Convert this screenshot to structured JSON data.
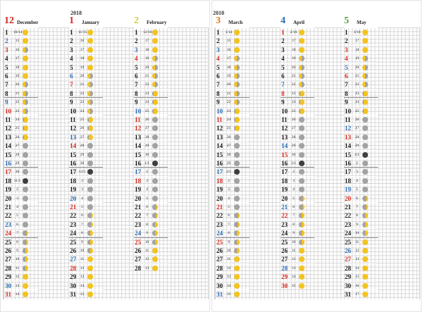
{
  "left_page": {
    "year": "2018",
    "months": [
      {
        "number": "12",
        "name": "December",
        "num_color": "#d6261c",
        "days": [
          {
            "d": "1",
            "l": "10/14",
            "m": "full"
          },
          {
            "d": "2",
            "l": "15",
            "m": "full",
            "c": "sat"
          },
          {
            "d": "3",
            "l": "16",
            "m": "wane",
            "c": "sun"
          },
          {
            "d": "4",
            "l": "17",
            "m": "full"
          },
          {
            "d": "5",
            "l": "18",
            "m": "full"
          },
          {
            "d": "6",
            "l": "19",
            "m": "full"
          },
          {
            "d": "7",
            "l": "20",
            "m": "wane"
          },
          {
            "d": "8",
            "l": "21",
            "m": "wane"
          },
          {
            "d": "9",
            "l": "22",
            "m": "wane",
            "c": "sat"
          },
          {
            "d": "10",
            "l": "23",
            "m": "wane",
            "c": "sun"
          },
          {
            "d": "11",
            "l": "24",
            "m": "gib"
          },
          {
            "d": "12",
            "l": "25",
            "m": "gib"
          },
          {
            "d": "13",
            "l": "26",
            "m": "gib"
          },
          {
            "d": "14",
            "l": "27",
            "m": "gray"
          },
          {
            "d": "15",
            "l": "28",
            "m": "gray"
          },
          {
            "d": "16",
            "l": "29",
            "m": "gray",
            "c": "sat"
          },
          {
            "d": "17",
            "l": "30",
            "m": "gray",
            "c": "sun"
          },
          {
            "d": "18",
            "l": "11/1",
            "m": "new"
          },
          {
            "d": "19",
            "l": "2",
            "m": "gray"
          },
          {
            "d": "20",
            "l": "3",
            "m": "gray"
          },
          {
            "d": "21",
            "l": "4",
            "m": "gray"
          },
          {
            "d": "22",
            "l": "5",
            "m": "gray"
          },
          {
            "d": "23",
            "l": "6",
            "m": "gray",
            "c": "sat"
          },
          {
            "d": "24",
            "l": "7",
            "m": "cresc",
            "c": "sun"
          },
          {
            "d": "25",
            "l": "8",
            "m": "cresc"
          },
          {
            "d": "26",
            "l": "9",
            "m": "wax"
          },
          {
            "d": "27",
            "l": "10",
            "m": "wax"
          },
          {
            "d": "28",
            "l": "11",
            "m": "wax"
          },
          {
            "d": "29",
            "l": "12",
            "m": "full"
          },
          {
            "d": "30",
            "l": "13",
            "m": "full",
            "c": "sat"
          },
          {
            "d": "31",
            "l": "14",
            "m": "full",
            "c": "sun"
          }
        ]
      },
      {
        "number": "1",
        "name": "January",
        "num_color": "#d6261c",
        "days": [
          {
            "d": "1",
            "l": "11/15",
            "m": "full"
          },
          {
            "d": "2",
            "l": "16",
            "m": "full"
          },
          {
            "d": "3",
            "l": "17",
            "m": "full"
          },
          {
            "d": "4",
            "l": "18",
            "m": "full"
          },
          {
            "d": "5",
            "l": "19",
            "m": "full"
          },
          {
            "d": "6",
            "l": "20",
            "m": "wane",
            "c": "sat"
          },
          {
            "d": "7",
            "l": "21",
            "m": "wane",
            "c": "sun"
          },
          {
            "d": "8",
            "l": "22",
            "m": "wane"
          },
          {
            "d": "9",
            "l": "23",
            "m": "wane"
          },
          {
            "d": "10",
            "l": "24",
            "m": "wane"
          },
          {
            "d": "11",
            "l": "25",
            "m": "gib"
          },
          {
            "d": "12",
            "l": "26",
            "m": "gib"
          },
          {
            "d": "13",
            "l": "27",
            "m": "gib",
            "c": "sat"
          },
          {
            "d": "14",
            "l": "28",
            "m": "gray",
            "c": "sun"
          },
          {
            "d": "15",
            "l": "29",
            "m": "gray"
          },
          {
            "d": "16",
            "l": "30",
            "m": "gray"
          },
          {
            "d": "17",
            "l": "12/1",
            "m": "new"
          },
          {
            "d": "18",
            "l": "2",
            "m": "gray"
          },
          {
            "d": "19",
            "l": "3",
            "m": "gray"
          },
          {
            "d": "20",
            "l": "4",
            "m": "gray",
            "c": "sat"
          },
          {
            "d": "21",
            "l": "5",
            "m": "gray",
            "c": "sun"
          },
          {
            "d": "22",
            "l": "6",
            "m": "cresc"
          },
          {
            "d": "23",
            "l": "7",
            "m": "cresc"
          },
          {
            "d": "24",
            "l": "8",
            "m": "wax"
          },
          {
            "d": "25",
            "l": "9",
            "m": "wax"
          },
          {
            "d": "26",
            "l": "10",
            "m": "wax"
          },
          {
            "d": "27",
            "l": "11",
            "m": "full",
            "c": "sat"
          },
          {
            "d": "28",
            "l": "12",
            "m": "full",
            "c": "sun"
          },
          {
            "d": "29",
            "l": "13",
            "m": "full"
          },
          {
            "d": "30",
            "l": "14",
            "m": "full"
          },
          {
            "d": "31",
            "l": "15",
            "m": "full"
          }
        ]
      },
      {
        "number": "2",
        "name": "February",
        "num_color": "#c9d43c",
        "days": [
          {
            "d": "1",
            "l": "12/16",
            "m": "full"
          },
          {
            "d": "2",
            "l": "17",
            "m": "full"
          },
          {
            "d": "3",
            "l": "18",
            "m": "full",
            "c": "sat"
          },
          {
            "d": "4",
            "l": "19",
            "m": "wane",
            "c": "sun"
          },
          {
            "d": "5",
            "l": "20",
            "m": "wane"
          },
          {
            "d": "6",
            "l": "21",
            "m": "wane"
          },
          {
            "d": "7",
            "l": "22",
            "m": "wane"
          },
          {
            "d": "8",
            "l": "23",
            "m": "gib"
          },
          {
            "d": "9",
            "l": "24",
            "m": "gib"
          },
          {
            "d": "10",
            "l": "25",
            "m": "gib",
            "c": "sat"
          },
          {
            "d": "11",
            "l": "26",
            "m": "gray",
            "c": "sun"
          },
          {
            "d": "12",
            "l": "27",
            "m": "gray",
            "c": "sun"
          },
          {
            "d": "13",
            "l": "28",
            "m": "gray"
          },
          {
            "d": "14",
            "l": "29",
            "m": "gray"
          },
          {
            "d": "15",
            "l": "30",
            "m": "gray"
          },
          {
            "d": "16",
            "l": "1/1",
            "m": "new"
          },
          {
            "d": "17",
            "l": "2",
            "m": "gray",
            "c": "sat"
          },
          {
            "d": "18",
            "l": "3",
            "m": "gray",
            "c": "sun"
          },
          {
            "d": "19",
            "l": "4",
            "m": "gray"
          },
          {
            "d": "20",
            "l": "5",
            "m": "gray"
          },
          {
            "d": "21",
            "l": "6",
            "m": "cresc"
          },
          {
            "d": "22",
            "l": "7",
            "m": "cresc"
          },
          {
            "d": "23",
            "l": "8",
            "m": "wax"
          },
          {
            "d": "24",
            "l": "9",
            "m": "wax",
            "c": "sat"
          },
          {
            "d": "25",
            "l": "10",
            "m": "wax",
            "c": "sun"
          },
          {
            "d": "26",
            "l": "11",
            "m": "full"
          },
          {
            "d": "27",
            "l": "12",
            "m": "full"
          },
          {
            "d": "28",
            "l": "13",
            "m": "full"
          }
        ]
      }
    ]
  },
  "right_page": {
    "year": "2018",
    "months": [
      {
        "number": "3",
        "name": "March",
        "num_color": "#e87a1e",
        "days": [
          {
            "d": "1",
            "l": "1/14",
            "m": "full"
          },
          {
            "d": "2",
            "l": "15",
            "m": "full"
          },
          {
            "d": "3",
            "l": "16",
            "m": "full",
            "c": "sat"
          },
          {
            "d": "4",
            "l": "17",
            "m": "wane",
            "c": "sun"
          },
          {
            "d": "5",
            "l": "18",
            "m": "wane"
          },
          {
            "d": "6",
            "l": "19",
            "m": "wane"
          },
          {
            "d": "7",
            "l": "20",
            "m": "wane"
          },
          {
            "d": "8",
            "l": "21",
            "m": "wane"
          },
          {
            "d": "9",
            "l": "22",
            "m": "wane"
          },
          {
            "d": "10",
            "l": "23",
            "m": "gib",
            "c": "sat"
          },
          {
            "d": "11",
            "l": "24",
            "m": "gib",
            "c": "sun"
          },
          {
            "d": "12",
            "l": "25",
            "m": "gib"
          },
          {
            "d": "13",
            "l": "26",
            "m": "gray"
          },
          {
            "d": "14",
            "l": "27",
            "m": "gray"
          },
          {
            "d": "15",
            "l": "28",
            "m": "gray"
          },
          {
            "d": "16",
            "l": "29",
            "m": "gray"
          },
          {
            "d": "17",
            "l": "2/1",
            "m": "new",
            "c": "sat"
          },
          {
            "d": "18",
            "l": "2",
            "m": "gray",
            "c": "sun"
          },
          {
            "d": "19",
            "l": "3",
            "m": "gray"
          },
          {
            "d": "20",
            "l": "4",
            "m": "gray"
          },
          {
            "d": "21",
            "l": "5",
            "m": "gray",
            "c": "sun"
          },
          {
            "d": "22",
            "l": "6",
            "m": "cresc"
          },
          {
            "d": "23",
            "l": "7",
            "m": "cresc"
          },
          {
            "d": "24",
            "l": "8",
            "m": "wax",
            "c": "sat"
          },
          {
            "d": "25",
            "l": "9",
            "m": "wax",
            "c": "sun"
          },
          {
            "d": "26",
            "l": "10",
            "m": "wax"
          },
          {
            "d": "27",
            "l": "11",
            "m": "full"
          },
          {
            "d": "28",
            "l": "12",
            "m": "full"
          },
          {
            "d": "29",
            "l": "13",
            "m": "full"
          },
          {
            "d": "30",
            "l": "14",
            "m": "full"
          },
          {
            "d": "31",
            "l": "15",
            "m": "full",
            "c": "sat"
          }
        ]
      },
      {
        "number": "4",
        "name": "April",
        "num_color": "#2a6ab3",
        "days": [
          {
            "d": "1",
            "l": "2/16",
            "m": "full",
            "c": "sun"
          },
          {
            "d": "2",
            "l": "17",
            "m": "full"
          },
          {
            "d": "3",
            "l": "18",
            "m": "full"
          },
          {
            "d": "4",
            "l": "19",
            "m": "wane"
          },
          {
            "d": "5",
            "l": "20",
            "m": "wane"
          },
          {
            "d": "6",
            "l": "21",
            "m": "wane"
          },
          {
            "d": "7",
            "l": "22",
            "m": "wane",
            "c": "sat"
          },
          {
            "d": "8",
            "l": "23",
            "m": "gib",
            "c": "sun"
          },
          {
            "d": "9",
            "l": "24",
            "m": "gib"
          },
          {
            "d": "10",
            "l": "25",
            "m": "gib"
          },
          {
            "d": "11",
            "l": "26",
            "m": "gray"
          },
          {
            "d": "12",
            "l": "27",
            "m": "gray"
          },
          {
            "d": "13",
            "l": "28",
            "m": "gray"
          },
          {
            "d": "14",
            "l": "29",
            "m": "gray",
            "c": "sat"
          },
          {
            "d": "15",
            "l": "30",
            "m": "gray",
            "c": "sun"
          },
          {
            "d": "16",
            "l": "3/1",
            "m": "new"
          },
          {
            "d": "17",
            "l": "2",
            "m": "gray"
          },
          {
            "d": "18",
            "l": "3",
            "m": "gray"
          },
          {
            "d": "19",
            "l": "4",
            "m": "gray"
          },
          {
            "d": "20",
            "l": "5",
            "m": "cresc"
          },
          {
            "d": "21",
            "l": "6",
            "m": "cresc",
            "c": "sat"
          },
          {
            "d": "22",
            "l": "7",
            "m": "wax",
            "c": "sun"
          },
          {
            "d": "23",
            "l": "8",
            "m": "wax"
          },
          {
            "d": "24",
            "l": "9",
            "m": "wax"
          },
          {
            "d": "25",
            "l": "10",
            "m": "wax"
          },
          {
            "d": "26",
            "l": "11",
            "m": "full"
          },
          {
            "d": "27",
            "l": "12",
            "m": "full"
          },
          {
            "d": "28",
            "l": "13",
            "m": "full",
            "c": "sat"
          },
          {
            "d": "29",
            "l": "14",
            "m": "full",
            "c": "sun"
          },
          {
            "d": "30",
            "l": "15",
            "m": "full",
            "c": "sun"
          }
        ]
      },
      {
        "number": "5",
        "name": "May",
        "num_color": "#5a9a3a",
        "days": [
          {
            "d": "1",
            "l": "3/16",
            "m": "full"
          },
          {
            "d": "2",
            "l": "17",
            "m": "full"
          },
          {
            "d": "3",
            "l": "18",
            "m": "full",
            "c": "sun"
          },
          {
            "d": "4",
            "l": "19",
            "m": "wane",
            "c": "sun"
          },
          {
            "d": "5",
            "l": "20",
            "m": "wane",
            "c": "sat"
          },
          {
            "d": "6",
            "l": "21",
            "m": "wane",
            "c": "sun"
          },
          {
            "d": "7",
            "l": "22",
            "m": "wane"
          },
          {
            "d": "8",
            "l": "23",
            "m": "gib"
          },
          {
            "d": "9",
            "l": "24",
            "m": "gib"
          },
          {
            "d": "10",
            "l": "25",
            "m": "gib"
          },
          {
            "d": "11",
            "l": "26",
            "m": "gray"
          },
          {
            "d": "12",
            "l": "27",
            "m": "gray",
            "c": "sat"
          },
          {
            "d": "13",
            "l": "28",
            "m": "gray",
            "c": "sun"
          },
          {
            "d": "14",
            "l": "29",
            "m": "gray"
          },
          {
            "d": "15",
            "l": "4/1",
            "m": "new"
          },
          {
            "d": "16",
            "l": "2",
            "m": "gray"
          },
          {
            "d": "17",
            "l": "3",
            "m": "gray"
          },
          {
            "d": "18",
            "l": "4",
            "m": "gray"
          },
          {
            "d": "19",
            "l": "5",
            "m": "gray",
            "c": "sat"
          },
          {
            "d": "20",
            "l": "6",
            "m": "cresc",
            "c": "sun"
          },
          {
            "d": "21",
            "l": "7",
            "m": "cresc"
          },
          {
            "d": "22",
            "l": "8",
            "m": "wax"
          },
          {
            "d": "23",
            "l": "9",
            "m": "wax"
          },
          {
            "d": "24",
            "l": "10",
            "m": "wax"
          },
          {
            "d": "25",
            "l": "11",
            "m": "full"
          },
          {
            "d": "26",
            "l": "12",
            "m": "full",
            "c": "sat"
          },
          {
            "d": "27",
            "l": "13",
            "m": "full",
            "c": "sun"
          },
          {
            "d": "28",
            "l": "14",
            "m": "full"
          },
          {
            "d": "29",
            "l": "15",
            "m": "full"
          },
          {
            "d": "30",
            "l": "16",
            "m": "full"
          },
          {
            "d": "31",
            "l": "17",
            "m": "full"
          }
        ]
      }
    ]
  },
  "colors": {
    "grid_line": "#d6d6d6",
    "full_moon": "#f3c31f",
    "new_moon": "#3e3e3e",
    "shadow_moon": "#a2a2a2",
    "sunday_red": "#d6261c",
    "saturday_blue": "#2a6ab3"
  }
}
